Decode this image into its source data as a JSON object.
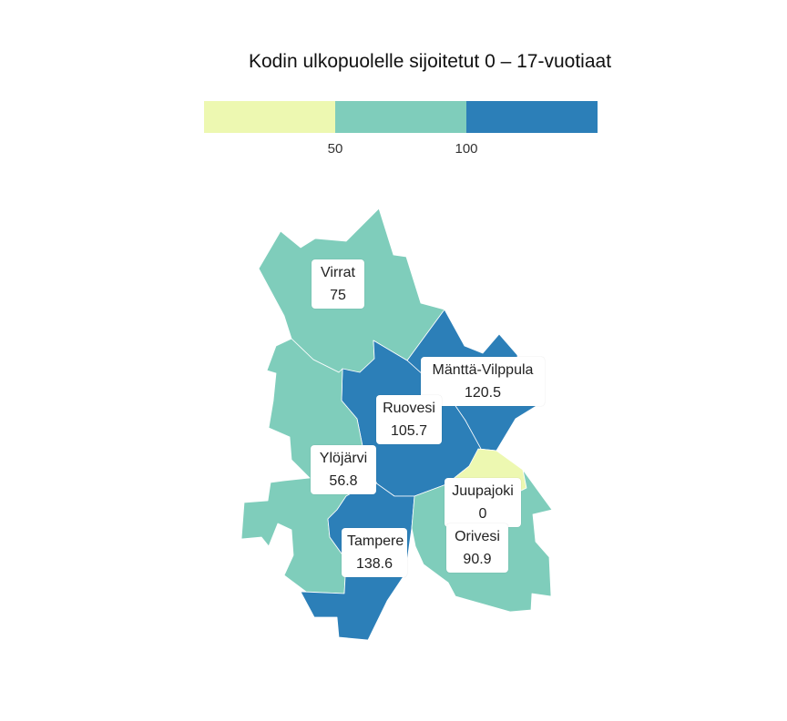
{
  "title": "Kodin ulkopuolelle sijoitetut 0 – 17-vuotiaat",
  "legend": {
    "colors": [
      "#edf8b1",
      "#7fcdbb",
      "#2c7fb8"
    ],
    "ticks": [
      "50",
      "100"
    ]
  },
  "regions": [
    {
      "name": "Virrat",
      "value": "75",
      "color": "#7fcdbb"
    },
    {
      "name": "Mänttä-Vilppula",
      "value": "120.5",
      "color": "#2c7fb8"
    },
    {
      "name": "Ruovesi",
      "value": "105.7",
      "color": "#2c7fb8"
    },
    {
      "name": "Ylöjärvi",
      "value": "56.8",
      "color": "#7fcdbb"
    },
    {
      "name": "Juupajoki",
      "value": "0",
      "color": "#edf8b1"
    },
    {
      "name": "Tampere",
      "value": "138.6",
      "color": "#2c7fb8"
    },
    {
      "name": "Orivesi",
      "value": "90.9",
      "color": "#7fcdbb"
    }
  ]
}
